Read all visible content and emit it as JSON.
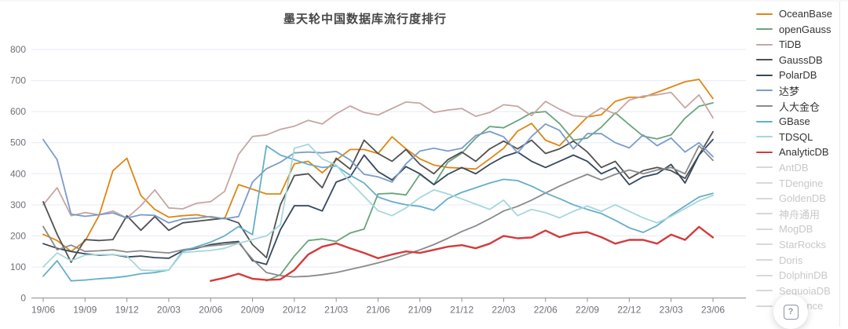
{
  "chart_data": {
    "type": "line",
    "title": "墨天轮中国数据库流行度排行",
    "xlabel": "",
    "ylabel": "",
    "ylim": [
      0,
      800
    ],
    "y_tick_step": 100,
    "grid": true,
    "legend_position": "right",
    "x": [
      "19/06",
      "19/07",
      "19/08",
      "19/09",
      "19/10",
      "19/11",
      "19/12",
      "20/01",
      "20/02",
      "20/03",
      "20/04",
      "20/05",
      "20/06",
      "20/07",
      "20/08",
      "20/09",
      "20/10",
      "20/11",
      "20/12",
      "21/01",
      "21/02",
      "21/03",
      "21/04",
      "21/05",
      "21/06",
      "21/07",
      "21/08",
      "21/09",
      "21/10",
      "21/11",
      "21/12",
      "22/01",
      "22/02",
      "22/03",
      "22/04",
      "22/05",
      "22/06",
      "22/07",
      "22/08",
      "22/09",
      "22/10",
      "22/11",
      "22/12",
      "23/01",
      "23/02",
      "23/03",
      "23/04",
      "23/05",
      "23/06"
    ],
    "x_axis_tick_labels": [
      "19/06",
      "19/09",
      "19/12",
      "20/03",
      "20/06",
      "20/09",
      "20/12",
      "21/03",
      "21/06",
      "21/09",
      "21/12",
      "22/03",
      "22/06",
      "22/09",
      "22/12",
      "23/03",
      "23/06"
    ],
    "series": [
      {
        "name": "OceanBase",
        "color": "#DE8612",
        "active": true,
        "values": [
          205,
          185,
          150,
          183,
          265,
          410,
          450,
          330,
          285,
          260,
          265,
          268,
          260,
          255,
          365,
          350,
          335,
          335,
          432,
          440,
          403,
          444,
          478,
          478,
          465,
          519,
          480,
          448,
          428,
          420,
          418,
          415,
          448,
          482,
          537,
          562,
          508,
          490,
          537,
          583,
          590,
          633,
          646,
          646,
          662,
          679,
          696,
          704,
          642
        ]
      },
      {
        "name": "openGauss",
        "color": "#69A47B",
        "active": true,
        "values": [
          null,
          null,
          null,
          null,
          null,
          null,
          null,
          null,
          null,
          null,
          null,
          null,
          null,
          null,
          null,
          null,
          55,
          75,
          135,
          185,
          190,
          182,
          209,
          222,
          335,
          337,
          332,
          398,
          365,
          437,
          466,
          515,
          552,
          548,
          571,
          596,
          600,
          562,
          508,
          515,
          550,
          596,
          558,
          521,
          512,
          525,
          579,
          617,
          628
        ]
      },
      {
        "name": "TiDB",
        "color": "#C7A6A3",
        "active": true,
        "values": [
          300,
          355,
          265,
          275,
          268,
          280,
          257,
          297,
          348,
          290,
          287,
          305,
          310,
          343,
          462,
          520,
          525,
          543,
          553,
          572,
          560,
          593,
          618,
          597,
          589,
          610,
          631,
          627,
          597,
          605,
          610,
          585,
          597,
          622,
          617,
          587,
          633,
          608,
          587,
          583,
          612,
          592,
          637,
          650,
          654,
          662,
          612,
          654,
          580
        ]
      },
      {
        "name": "GaussDB",
        "color": "#515151",
        "active": true,
        "values": [
          310,
          205,
          115,
          188,
          185,
          188,
          265,
          218,
          262,
          218,
          242,
          247,
          252,
          257,
          242,
          172,
          130,
          300,
          394,
          400,
          355,
          450,
          415,
          508,
          465,
          440,
          478,
          430,
          400,
          445,
          470,
          440,
          480,
          505,
          480,
          508,
          465,
          480,
          505,
          470,
          420,
          440,
          385,
          410,
          420,
          410,
          385,
          460,
          535
        ]
      },
      {
        "name": "PolarDB",
        "color": "#36485C",
        "active": true,
        "values": [
          175,
          160,
          150,
          142,
          138,
          140,
          132,
          135,
          130,
          128,
          152,
          160,
          172,
          178,
          182,
          120,
          108,
          220,
          297,
          297,
          280,
          373,
          390,
          460,
          407,
          380,
          423,
          400,
          365,
          398,
          420,
          400,
          430,
          455,
          470,
          440,
          420,
          440,
          460,
          440,
          400,
          420,
          365,
          390,
          400,
          430,
          370,
          460,
          510
        ]
      },
      {
        "name": "达梦",
        "color": "#7B9CC9",
        "active": true,
        "values": [
          510,
          445,
          270,
          263,
          268,
          274,
          257,
          268,
          266,
          242,
          254,
          257,
          262,
          255,
          262,
          373,
          416,
          437,
          467,
          470,
          467,
          472,
          444,
          398,
          390,
          373,
          432,
          473,
          482,
          473,
          482,
          523,
          536,
          519,
          467,
          520,
          560,
          540,
          480,
          529,
          529,
          500,
          483,
          525,
          490,
          515,
          470,
          500,
          455
        ]
      },
      {
        "name": "人大金仓",
        "color": "#8A8A8A",
        "active": true,
        "values": [
          230,
          155,
          170,
          150,
          152,
          155,
          148,
          152,
          148,
          145,
          155,
          162,
          168,
          172,
          178,
          125,
          82,
          72,
          68,
          70,
          75,
          82,
          92,
          102,
          113,
          125,
          140,
          155,
          172,
          192,
          214,
          232,
          255,
          280,
          295,
          315,
          338,
          360,
          380,
          398,
          380,
          398,
          412,
          400,
          412,
          420,
          400,
          490,
          443
        ]
      },
      {
        "name": "GBase",
        "color": "#66AEC9",
        "active": true,
        "values": [
          70,
          120,
          55,
          58,
          62,
          65,
          70,
          78,
          82,
          90,
          150,
          165,
          180,
          200,
          230,
          204,
          490,
          460,
          445,
          430,
          420,
          425,
          395,
          370,
          325,
          310,
          300,
          295,
          282,
          320,
          340,
          355,
          370,
          382,
          378,
          360,
          338,
          320,
          300,
          285,
          272,
          250,
          226,
          211,
          233,
          267,
          296,
          325,
          337
        ]
      },
      {
        "name": "TDSQL",
        "color": "#A6D7DC",
        "active": true,
        "values": [
          100,
          145,
          120,
          138,
          140,
          140,
          135,
          90,
          88,
          90,
          146,
          150,
          153,
          160,
          176,
          188,
          200,
          235,
          482,
          495,
          448,
          428,
          373,
          327,
          281,
          265,
          290,
          323,
          348,
          335,
          319,
          302,
          285,
          315,
          265,
          285,
          275,
          258,
          279,
          296,
          279,
          300,
          279,
          258,
          242,
          263,
          288,
          313,
          330
        ]
      },
      {
        "name": "AnalyticDB",
        "color": "#D43B3B",
        "active": true,
        "highlight": true,
        "values": [
          null,
          null,
          null,
          null,
          null,
          null,
          null,
          null,
          null,
          null,
          null,
          null,
          55,
          65,
          78,
          62,
          58,
          60,
          90,
          140,
          165,
          176,
          160,
          145,
          128,
          140,
          150,
          145,
          155,
          165,
          170,
          160,
          175,
          200,
          192,
          195,
          217,
          196,
          208,
          212,
          196,
          175,
          187,
          187,
          175,
          204,
          187,
          229,
          195
        ]
      },
      {
        "name": "AntDB",
        "color": "#d8d8d8",
        "active": false,
        "values": []
      },
      {
        "name": "TDengine",
        "color": "#d8d8d8",
        "active": false,
        "values": []
      },
      {
        "name": "GoldenDB",
        "color": "#d8d8d8",
        "active": false,
        "values": []
      },
      {
        "name": "神舟通用",
        "color": "#d8d8d8",
        "active": false,
        "values": []
      },
      {
        "name": "MogDB",
        "color": "#d8d8d8",
        "active": false,
        "values": []
      },
      {
        "name": "StarRocks",
        "color": "#d8d8d8",
        "active": false,
        "values": []
      },
      {
        "name": "Doris",
        "color": "#d8d8d8",
        "active": false,
        "values": []
      },
      {
        "name": "DolphinDB",
        "color": "#d8d8d8",
        "active": false,
        "values": []
      },
      {
        "name": "SequoiaDB",
        "color": "#d8d8d8",
        "active": false,
        "values": []
      },
      {
        "name": "Kyligence",
        "color": "#d8d8d8",
        "active": false,
        "values": []
      }
    ],
    "colors": {
      "grid_line": "#e4eaf4",
      "axis_line": "#8f8f8f",
      "axis_label": "#6E7079",
      "title": "#464646",
      "legend_active_label": "#333333",
      "legend_inactive_label": "#c8c8c8"
    }
  },
  "help_button": {
    "icon": "help-question-icon",
    "label": "?"
  }
}
